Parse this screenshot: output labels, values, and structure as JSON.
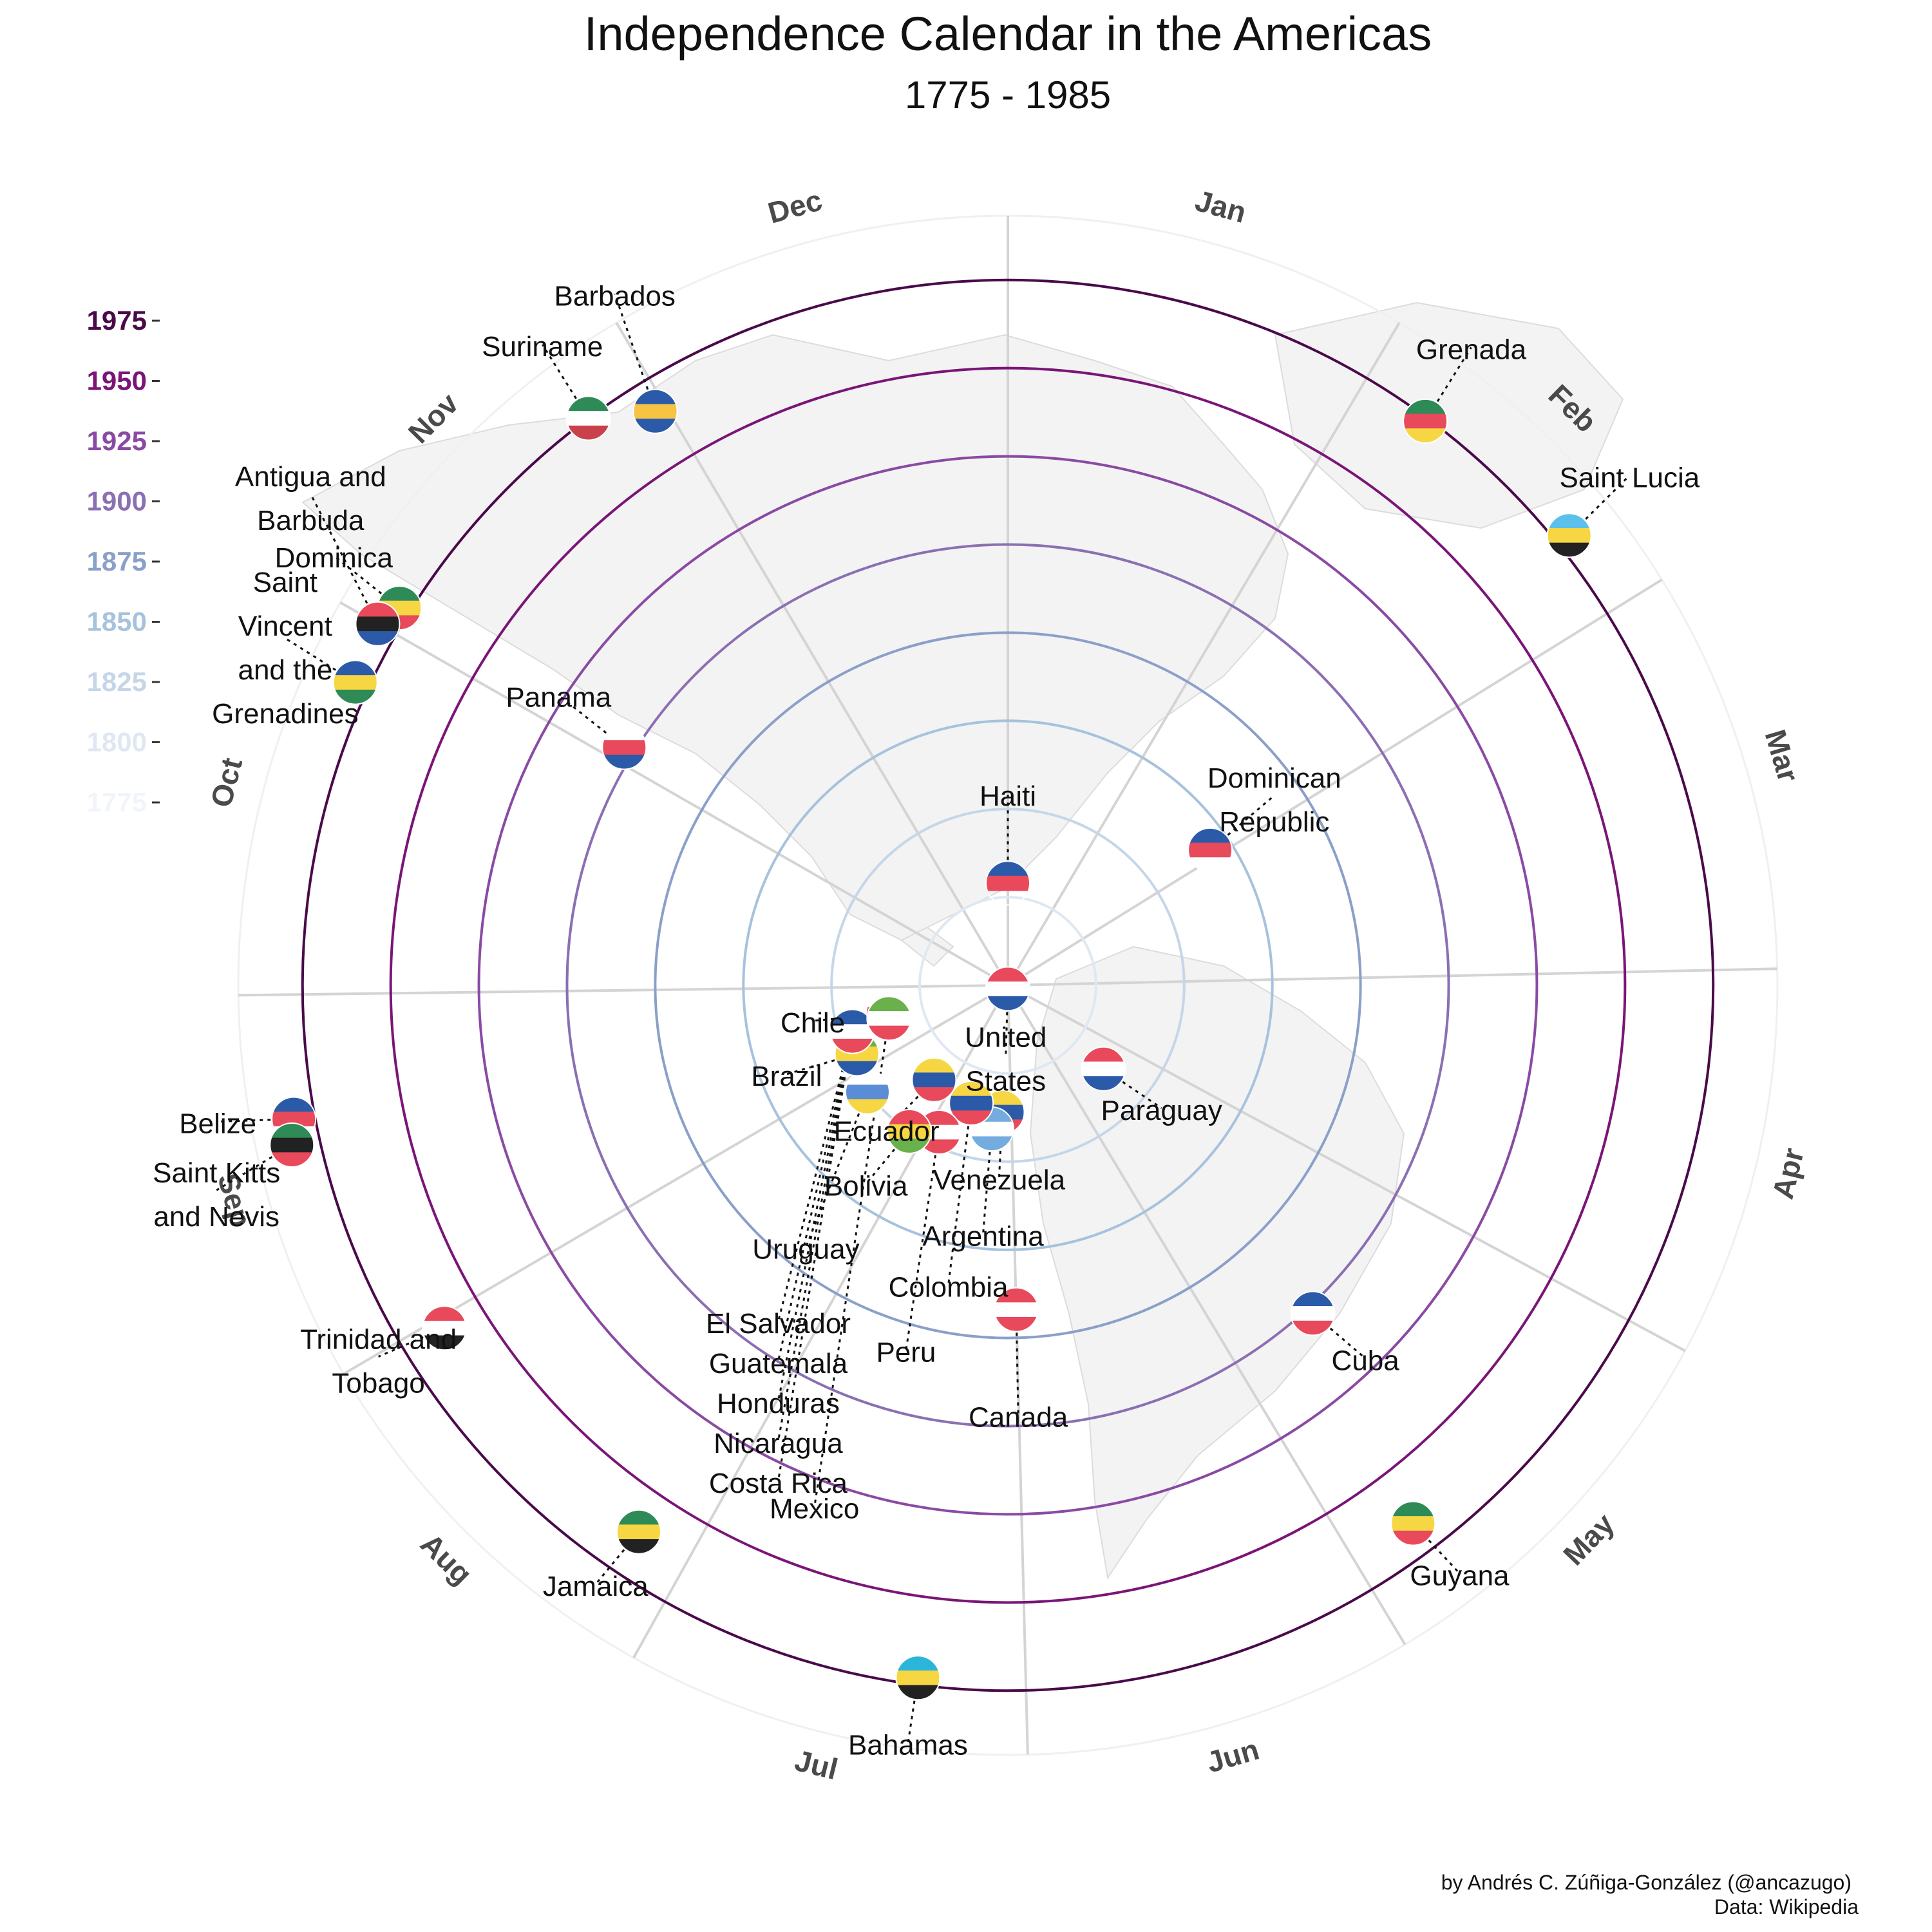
{
  "chart_data": {
    "type": "scatter",
    "title": "Independence Calendar in the Americas",
    "subtitle": "1775 - 1985",
    "caption_author": "by Andrés C. Zúñiga-González (@ancazugo)",
    "caption_source": "Data: Wikipedia",
    "coordinate_system": "polar",
    "angle_axis": "month of independence day",
    "radius_axis": "year of independence",
    "months": [
      "Jan",
      "Feb",
      "Mar",
      "Apr",
      "May",
      "Jun",
      "Jul",
      "Aug",
      "Sep",
      "Oct",
      "Nov",
      "Dec"
    ],
    "year_ticks": [
      1975,
      1950,
      1925,
      1900,
      1875,
      1850,
      1825,
      1800,
      1775
    ],
    "year_colors": [
      "#4a0a4a",
      "#7a1577",
      "#8a4aa3",
      "#8b6fb3",
      "#8aa0c8",
      "#a7c2dd",
      "#c5d6e8",
      "#dfe8f2",
      "#f1f5fa"
    ],
    "ring_years": [
      1800,
      1825,
      1850,
      1875,
      1900,
      1925,
      1950,
      1975
    ],
    "ylim": [
      1775,
      1985
    ],
    "grid": true,
    "legend_position": "left",
    "points": [
      {
        "country": "Haiti",
        "label": "Haiti",
        "date": "1804-01-01",
        "year": 1804,
        "flag": [
          "#2b5ba8",
          "#e8495b"
        ]
      },
      {
        "country": "Dominican Republic",
        "label": "Dominican\nRepublic",
        "date": "1844-02-27",
        "year": 1844,
        "flag": [
          "#2b5ba8",
          "#e8495b",
          "#ffffff"
        ]
      },
      {
        "country": "Grenada",
        "label": "Grenada",
        "date": "1974-02-07",
        "year": 1974,
        "flag": [
          "#2e8b57",
          "#e8495b",
          "#f6d743"
        ]
      },
      {
        "country": "Saint Lucia",
        "label": "Saint Lucia",
        "date": "1979-02-22",
        "year": 1979,
        "flag": [
          "#5bc0eb",
          "#f6d743",
          "#222222"
        ]
      },
      {
        "country": "United States",
        "label": "United\nStates",
        "date": "1776-07-04",
        "year": 1776,
        "flag": [
          "#e8495b",
          "#ffffff",
          "#2b5ba8"
        ]
      },
      {
        "country": "Paraguay",
        "label": "Paraguay",
        "date": "1811-05-14",
        "year": 1811,
        "flag": [
          "#e8495b",
          "#ffffff",
          "#2b5ba8"
        ]
      },
      {
        "country": "Venezuela",
        "label": "Venezuela",
        "date": "1811-07-05",
        "year": 1811,
        "flag": [
          "#f6d743",
          "#2b5ba8",
          "#e8495b"
        ]
      },
      {
        "country": "Argentina",
        "label": "Argentina",
        "date": "1816-07-09",
        "year": 1816,
        "flag": [
          "#74acdf",
          "#ffffff",
          "#74acdf"
        ]
      },
      {
        "country": "Colombia",
        "label": "Colombia",
        "date": "1810-07-20",
        "year": 1810,
        "flag": [
          "#f6d743",
          "#2b5ba8",
          "#e8495b"
        ]
      },
      {
        "country": "Peru",
        "label": "Peru",
        "date": "1821-07-28",
        "year": 1821,
        "flag": [
          "#e8495b",
          "#ffffff",
          "#e8495b"
        ]
      },
      {
        "country": "Bolivia",
        "label": "Bolivia",
        "date": "1825-08-06",
        "year": 1825,
        "flag": [
          "#e8495b",
          "#f6d743",
          "#6ab04c"
        ]
      },
      {
        "country": "Ecuador",
        "label": "Ecuador",
        "date": "1809-08-10",
        "year": 1809,
        "flag": [
          "#f6d743",
          "#2b5ba8",
          "#e8495b"
        ]
      },
      {
        "country": "Uruguay",
        "label": "Uruguay",
        "date": "1825-08-25",
        "year": 1825,
        "flag": [
          "#ffffff",
          "#5b8dd6",
          "#f6d743"
        ]
      },
      {
        "country": "Chile",
        "label": "Chile",
        "date": "1810-09-18",
        "year": 1810,
        "flag": [
          "#ffffff",
          "#e8495b",
          "#2b5ba8"
        ]
      },
      {
        "country": "Brazil",
        "label": "Brazil",
        "date": "1822-09-07",
        "year": 1822,
        "flag": [
          "#6ab04c",
          "#f6d743",
          "#2b5ba8"
        ]
      },
      {
        "country": "El Salvador",
        "label": "El Salvador",
        "date": "1821-09-15",
        "year": 1821,
        "flag": [
          "#2b6fb8",
          "#ffffff",
          "#2b6fb8"
        ]
      },
      {
        "country": "Guatemala",
        "label": "Guatemala",
        "date": "1821-09-15",
        "year": 1821,
        "flag": [
          "#4a90d9",
          "#ffffff",
          "#4a90d9"
        ]
      },
      {
        "country": "Honduras",
        "label": "Honduras",
        "date": "1821-09-15",
        "year": 1821,
        "flag": [
          "#2b5ba8",
          "#ffffff",
          "#2b5ba8"
        ]
      },
      {
        "country": "Nicaragua",
        "label": "Nicaragua",
        "date": "1821-09-15",
        "year": 1821,
        "flag": [
          "#2b5ba8",
          "#ffffff",
          "#2b5ba8"
        ]
      },
      {
        "country": "Costa Rica",
        "label": "Costa Rica",
        "date": "1821-09-15",
        "year": 1821,
        "flag": [
          "#2b5ba8",
          "#ffffff",
          "#e8495b"
        ]
      },
      {
        "country": "Mexico",
        "label": "Mexico",
        "date": "1810-09-16",
        "year": 1810,
        "flag": [
          "#6ab04c",
          "#ffffff",
          "#e8495b"
        ]
      },
      {
        "country": "Canada",
        "label": "Canada",
        "date": "1867-07-01",
        "year": 1867,
        "flag": [
          "#e8495b",
          "#ffffff",
          "#e8495b"
        ]
      },
      {
        "country": "Bahamas",
        "label": "Bahamas",
        "date": "1973-07-10",
        "year": 1973,
        "flag": [
          "#2bb5d9",
          "#f6d743",
          "#222222"
        ]
      },
      {
        "country": "Jamaica",
        "label": "Jamaica",
        "date": "1962-08-06",
        "year": 1962,
        "flag": [
          "#2e8b57",
          "#f6d743",
          "#222222"
        ]
      },
      {
        "country": "Trinidad and Tobago",
        "label": "Trinidad and\nTobago",
        "date": "1962-08-31",
        "year": 1962,
        "flag": [
          "#e8495b",
          "#ffffff",
          "#222222"
        ]
      },
      {
        "country": "Belize",
        "label": "Belize",
        "date": "1981-09-21",
        "year": 1981,
        "flag": [
          "#2b5ba8",
          "#e8495b",
          "#ffffff"
        ]
      },
      {
        "country": "Saint Kitts and Nevis",
        "label": "Saint Kitts\nand Nevis",
        "date": "1983-09-19",
        "year": 1983,
        "flag": [
          "#2e8b57",
          "#222222",
          "#e8495b"
        ]
      },
      {
        "country": "Saint Vincent and the Grenadines",
        "label": "Saint\nVincent\nand the\nGrenadines",
        "date": "1979-10-27",
        "year": 1979,
        "flag": [
          "#2b5ba8",
          "#f6d743",
          "#2e8b57"
        ]
      },
      {
        "country": "Dominica",
        "label": "Dominica",
        "date": "1978-11-03",
        "year": 1978,
        "flag": [
          "#2e8b57",
          "#f6d743",
          "#e8495b"
        ]
      },
      {
        "country": "Antigua and Barbuda",
        "label": "Antigua and\nBarbuda",
        "date": "1981-11-01",
        "year": 1981,
        "flag": [
          "#e8495b",
          "#222222",
          "#2b5ba8"
        ]
      },
      {
        "country": "Panama",
        "label": "Panama",
        "date": "1903-11-03",
        "year": 1903,
        "flag": [
          "#ffffff",
          "#e8495b",
          "#2b5ba8"
        ]
      },
      {
        "country": "Cuba",
        "label": "Cuba",
        "date": "1902-05-20",
        "year": 1902,
        "flag": [
          "#2b5ba8",
          "#ffffff",
          "#e8495b"
        ]
      },
      {
        "country": "Suriname",
        "label": "Suriname",
        "date": "1975-11-25",
        "year": 1975,
        "flag": [
          "#2e8b57",
          "#ffffff",
          "#c8414b"
        ]
      },
      {
        "country": "Barbados",
        "label": "Barbados",
        "date": "1966-11-30",
        "year": 1966,
        "flag": [
          "#2b5ba8",
          "#f6c343",
          "#2b5ba8"
        ]
      },
      {
        "country": "Guyana",
        "label": "Guyana",
        "date": "1966-05-26",
        "year": 1966,
        "flag": [
          "#2e8b57",
          "#f6d743",
          "#e8495b"
        ]
      }
    ]
  }
}
